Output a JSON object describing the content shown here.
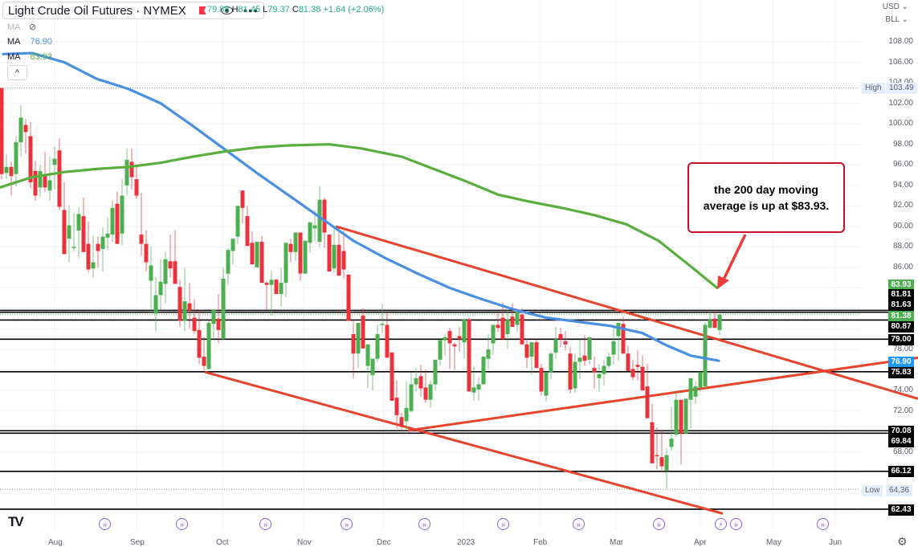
{
  "header": {
    "title": "Light Crude Oil Futures · NYMEX",
    "ohlc": {
      "o_label": "O",
      "o": "79.88",
      "h_label": "H",
      "h": "81.45",
      "l_label": "L",
      "l": "79.37",
      "c_label": "C",
      "c": "81.38",
      "change": "+1.64 (+2.06%)"
    },
    "icons": [
      "flag-icon",
      "eye-icon",
      "more-icon"
    ]
  },
  "indicators": [
    {
      "label": "MA",
      "value": "",
      "hidden": true,
      "icon": "eye-off-icon"
    },
    {
      "label": "MA",
      "value": "76.90",
      "color": "#4a90e2"
    },
    {
      "label": "MA",
      "value": "83.93",
      "color": "#4caf50"
    }
  ],
  "collapse_label": "^",
  "price_axis": {
    "currency": "USD ⌄",
    "unit": "BLL ⌄",
    "ticks": [
      "108.00",
      "106.00",
      "104.00",
      "102.00",
      "100.00",
      "98.00",
      "96.00",
      "94.00",
      "92.00",
      "90.00",
      "88.00",
      "86.00",
      "78.00",
      "74.00",
      "72.00",
      "68.00"
    ],
    "high_label": "High",
    "high": "103.49",
    "low_label": "Low",
    "low": "64.36",
    "tags": [
      {
        "value": "83.93",
        "color": "#4caf50"
      },
      {
        "value": "81.81",
        "color": "#000000"
      },
      {
        "value": "81.63",
        "color": "#000000"
      },
      {
        "value": "81.38",
        "color": "#4caf50"
      },
      {
        "value": "80.87",
        "color": "#000000"
      },
      {
        "value": "79.00",
        "color": "#000000"
      },
      {
        "value": "76.90",
        "color": "#2196f3"
      },
      {
        "value": "75.83",
        "color": "#000000"
      },
      {
        "value": "70.08",
        "color": "#000000"
      },
      {
        "value": "69.84",
        "color": "#000000"
      },
      {
        "value": "66.12",
        "color": "#000000"
      },
      {
        "value": "62.43",
        "color": "#000000"
      }
    ]
  },
  "time_axis": {
    "labels": [
      "Aug",
      "Sep",
      "Oct",
      "Nov",
      "Dec",
      "2023",
      "Feb",
      "Mar",
      "Apr",
      "May",
      "Jun"
    ]
  },
  "annotation": {
    "line1": "the 200 day moving",
    "line2": "average is up at $83.93."
  },
  "colors": {
    "up": "#4caf50",
    "down": "#e8323c",
    "ma100": "#4a90e2",
    "ma200": "#5aae3e",
    "trend": "#e8432d",
    "level": "#000000"
  },
  "chart_data": {
    "type": "candlestick",
    "title": "Light Crude Oil Futures · NYMEX (Daily)",
    "xlabel": "",
    "ylabel": "USD / BLL",
    "ylim": [
      61.5,
      109.5
    ],
    "x_ticks": [
      "Aug",
      "Sep",
      "Oct",
      "Nov",
      "Dec",
      "2023",
      "Feb",
      "Mar",
      "Apr",
      "May",
      "Jun"
    ],
    "last_bar": {
      "open": 79.88,
      "high": 81.45,
      "low": 79.37,
      "close": 81.38,
      "change": 1.64,
      "change_pct": 2.06
    },
    "high": 103.49,
    "low": 64.36,
    "horizontal_levels": [
      81.81,
      81.63,
      80.87,
      79.0,
      75.83,
      70.08,
      69.84,
      66.12,
      62.43
    ],
    "moving_averages": [
      {
        "name": "MA 100",
        "value": 76.9,
        "color": "#4a90e2",
        "points": [
          [
            4,
            106.8
          ],
          [
            40,
            106.9
          ],
          [
            80,
            106.0
          ],
          [
            120,
            104.4
          ],
          [
            160,
            103.4
          ],
          [
            200,
            102.0
          ],
          [
            240,
            99.8
          ],
          [
            280,
            97.5
          ],
          [
            320,
            95.2
          ],
          [
            360,
            93.0
          ],
          [
            400,
            90.8
          ],
          [
            440,
            88.6
          ],
          [
            480,
            86.9
          ],
          [
            520,
            85.4
          ],
          [
            560,
            84.0
          ],
          [
            600,
            82.9
          ],
          [
            640,
            81.9
          ],
          [
            680,
            81.1
          ],
          [
            720,
            80.7
          ],
          [
            760,
            80.3
          ],
          [
            800,
            79.6
          ],
          [
            830,
            78.4
          ],
          [
            860,
            77.4
          ],
          [
            895,
            76.9
          ]
        ]
      },
      {
        "name": "MA 200",
        "value": 83.93,
        "color": "#5aae3e",
        "points": [
          [
            0,
            93.8
          ],
          [
            40,
            94.8
          ],
          [
            80,
            95.3
          ],
          [
            120,
            95.6
          ],
          [
            160,
            95.8
          ],
          [
            200,
            96.2
          ],
          [
            240,
            96.8
          ],
          [
            280,
            97.3
          ],
          [
            320,
            97.7
          ],
          [
            360,
            97.9
          ],
          [
            410,
            98.0
          ],
          [
            450,
            97.6
          ],
          [
            500,
            96.8
          ],
          [
            540,
            95.6
          ],
          [
            580,
            94.4
          ],
          [
            620,
            93.1
          ],
          [
            660,
            92.4
          ],
          [
            700,
            91.8
          ],
          [
            740,
            91.1
          ],
          [
            780,
            90.2
          ],
          [
            820,
            88.6
          ],
          [
            860,
            86.1
          ],
          [
            893,
            84.0
          ]
        ]
      }
    ],
    "trendlines": [
      {
        "from": [
          418,
          90.0
        ],
        "to": [
          1143,
          73.2
        ]
      },
      {
        "from": [
          255,
          75.8
        ],
        "to": [
          900,
          62.0
        ]
      },
      {
        "from": [
          508,
          70.1
        ],
        "to": [
          1143,
          77.2
        ]
      }
    ],
    "candles": [
      [
        2,
        103.5,
        103.5,
        94.6,
        95.1
      ],
      [
        8,
        95.2,
        97.0,
        94.6,
        95.8
      ],
      [
        14,
        95.8,
        96.3,
        93.0,
        94.9
      ],
      [
        20,
        95.1,
        98.8,
        93.9,
        98.2
      ],
      [
        26,
        98.2,
        101.8,
        96.8,
        100.6
      ],
      [
        32,
        99.9,
        100.5,
        97.1,
        99.2
      ],
      [
        38,
        98.8,
        100.2,
        93.7,
        94.3
      ],
      [
        44,
        95.4,
        96.4,
        92.5,
        93.0
      ],
      [
        50,
        93.8,
        96.0,
        92.9,
        95.4
      ],
      [
        56,
        95.1,
        97.3,
        93.4,
        93.8
      ],
      [
        62,
        93.5,
        96.8,
        92.5,
        94.5
      ],
      [
        68,
        96.0,
        97.8,
        93.6,
        96.6
      ],
      [
        74,
        97.4,
        98.6,
        91.6,
        91.9
      ],
      [
        80,
        91.6,
        94.3,
        89.0,
        87.3
      ],
      [
        86,
        88.8,
        92.0,
        86.5,
        90.1
      ],
      [
        92,
        87.9,
        91.3,
        87.6,
        88.0
      ],
      [
        98,
        89.6,
        91.9,
        86.9,
        91.2
      ],
      [
        104,
        91.0,
        92.8,
        87.9,
        87.5
      ],
      [
        110,
        88.3,
        90.5,
        85.5,
        85.8
      ],
      [
        116,
        85.9,
        89.1,
        85.0,
        86.5
      ],
      [
        122,
        88.3,
        89.0,
        86.0,
        87.6
      ],
      [
        128,
        87.8,
        89.9,
        85.6,
        89.0
      ],
      [
        134,
        88.9,
        90.9,
        87.7,
        89.3
      ],
      [
        140,
        89.2,
        92.5,
        88.5,
        91.8
      ],
      [
        146,
        92.2,
        93.4,
        88.6,
        88.3
      ],
      [
        152,
        89.3,
        94.6,
        88.2,
        93.0
      ],
      [
        158,
        94.0,
        97.6,
        93.0,
        96.5
      ],
      [
        164,
        96.3,
        97.6,
        93.6,
        94.8
      ],
      [
        170,
        94.6,
        95.8,
        92.7,
        93.0
      ],
      [
        176,
        89.2,
        93.3,
        87.1,
        88.3
      ],
      [
        182,
        88.3,
        89.6,
        85.6,
        86.5
      ],
      [
        188,
        84.7,
        88.1,
        82.0,
        86.2
      ],
      [
        194,
        81.5,
        85.0,
        79.8,
        83.3
      ],
      [
        200,
        83.3,
        86.8,
        81.9,
        84.6
      ],
      [
        206,
        84.4,
        87.5,
        82.5,
        86.8
      ],
      [
        212,
        86.6,
        89.2,
        85.0,
        85.9
      ],
      [
        218,
        86.6,
        89.6,
        84.9,
        84.4
      ],
      [
        224,
        84.1,
        84.8,
        80.2,
        80.8
      ],
      [
        230,
        80.8,
        86.0,
        79.8,
        82.7
      ],
      [
        236,
        82.5,
        84.5,
        80.0,
        81.8
      ],
      [
        242,
        81.1,
        82.9,
        79.5,
        79.8
      ],
      [
        248,
        79.9,
        81.9,
        76.6,
        77.2
      ],
      [
        254,
        77.3,
        79.2,
        76.0,
        76.4
      ],
      [
        260,
        76.1,
        80.8,
        76.0,
        80.6
      ],
      [
        266,
        80.5,
        81.5,
        79.0,
        81.9
      ],
      [
        272,
        81.0,
        83.4,
        78.6,
        79.9
      ],
      [
        278,
        79.0,
        86.0,
        79.0,
        84.9
      ],
      [
        284,
        85.4,
        87.9,
        84.3,
        87.7
      ],
      [
        290,
        87.6,
        88.0,
        86.3,
        88.8
      ],
      [
        296,
        89.0,
        91.6,
        88.3,
        92.0
      ],
      [
        302,
        93.5,
        93.5,
        90.3,
        91.8
      ],
      [
        308,
        91.0,
        92.0,
        88.8,
        88.1
      ],
      [
        314,
        88.4,
        89.5,
        87.5,
        86.3
      ],
      [
        320,
        86.0,
        88.4,
        86.0,
        88.5
      ],
      [
        326,
        88.5,
        89.1,
        84.5,
        84.5
      ],
      [
        332,
        84.5,
        84.7,
        81.9,
        84.3
      ],
      [
        338,
        84.3,
        85.7,
        81.3,
        84.8
      ],
      [
        344,
        84.8,
        84.9,
        83.8,
        83.4
      ],
      [
        350,
        83.4,
        86.0,
        82.2,
        84.5
      ],
      [
        356,
        84.5,
        88.0,
        83.1,
        88.4
      ],
      [
        362,
        88.3,
        88.8,
        86.5,
        87.5
      ],
      [
        368,
        87.5,
        89.0,
        86.6,
        89.4
      ],
      [
        374,
        89.4,
        88.6,
        84.7,
        85.4
      ],
      [
        380,
        85.4,
        87.4,
        85.5,
        88.6
      ],
      [
        386,
        88.4,
        90.3,
        87.4,
        90.4
      ],
      [
        392,
        89.8,
        91.6,
        88.6,
        90.1
      ],
      [
        398,
        88.5,
        93.9,
        88.0,
        92.6
      ],
      [
        404,
        92.6,
        92.8,
        87.9,
        89.4
      ],
      [
        410,
        89.2,
        88.9,
        86.0,
        85.6
      ],
      [
        416,
        85.9,
        89.9,
        85.5,
        88.2
      ],
      [
        422,
        88.2,
        89.9,
        86.4,
        85.2
      ],
      [
        428,
        87.6,
        89.6,
        84.9,
        85.8
      ],
      [
        434,
        85.3,
        84.6,
        81.1,
        80.8
      ],
      [
        440,
        79.5,
        80.8,
        75.2,
        77.6
      ],
      [
        446,
        77.6,
        80.4,
        76.2,
        80.6
      ],
      [
        452,
        81.3,
        82.0,
        78.1,
        78.1
      ],
      [
        458,
        76.4,
        78.0,
        74.2,
        78.5
      ],
      [
        464,
        75.5,
        77.1,
        74.0,
        77.1
      ],
      [
        470,
        77.1,
        80.4,
        76.8,
        79.5
      ],
      [
        476,
        80.4,
        82.4,
        79.6,
        80.5
      ],
      [
        482,
        80.4,
        81.6,
        79.0,
        77.2
      ],
      [
        488,
        77.7,
        77.5,
        73.0,
        73.0
      ],
      [
        494,
        73.3,
        75.0,
        70.3,
        71.6
      ],
      [
        500,
        71.4,
        71.8,
        70.2,
        70.6
      ],
      [
        506,
        71.0,
        74.9,
        70.2,
        72.3
      ],
      [
        512,
        72.0,
        75.7,
        71.9,
        74.6
      ],
      [
        518,
        74.6,
        76.2,
        73.9,
        75.2
      ],
      [
        524,
        75.4,
        76.5,
        73.4,
        74.2
      ],
      [
        530,
        74.3,
        76.0,
        72.8,
        73.1
      ],
      [
        536,
        73.1,
        75.0,
        72.3,
        74.6
      ],
      [
        542,
        74.6,
        76.3,
        74.0,
        77.0
      ],
      [
        548,
        77.0,
        79.0,
        76.4,
        78.9
      ],
      [
        554,
        78.9,
        79.5,
        77.4,
        79.2
      ],
      [
        560,
        79.8,
        80.1,
        76.1,
        78.6
      ],
      [
        566,
        78.5,
        78.7,
        76.0,
        78.3
      ],
      [
        572,
        79.3,
        80.2,
        77.8,
        79.0
      ],
      [
        578,
        78.7,
        81.0,
        77.1,
        80.9
      ],
      [
        584,
        80.9,
        81.1,
        74.5,
        73.9
      ],
      [
        590,
        73.8,
        76.4,
        73.0,
        74.3
      ],
      [
        596,
        74.1,
        75.3,
        73.0,
        74.6
      ],
      [
        602,
        74.6,
        76.8,
        75.4,
        77.3
      ],
      [
        608,
        77.1,
        79.5,
        76.1,
        78.0
      ],
      [
        614,
        78.6,
        80.4,
        77.5,
        80.4
      ],
      [
        620,
        80.4,
        81.6,
        79.7,
        80.1
      ],
      [
        626,
        81.1,
        82.6,
        79.6,
        79.0
      ],
      [
        632,
        79.5,
        81.9,
        78.1,
        80.9
      ],
      [
        638,
        81.2,
        82.5,
        80.4,
        80.2
      ],
      [
        644,
        80.4,
        81.4,
        79.7,
        81.7
      ],
      [
        650,
        81.4,
        82.0,
        79.5,
        78.5
      ],
      [
        656,
        78.5,
        79.1,
        76.2,
        77.2
      ],
      [
        662,
        77.3,
        77.8,
        75.5,
        78.7
      ],
      [
        668,
        78.7,
        79.0,
        77.1,
        76.2
      ],
      [
        674,
        76.2,
        76.6,
        73.5,
        73.9
      ],
      [
        680,
        73.5,
        74.8,
        72.9,
        75.8
      ],
      [
        686,
        75.8,
        77.8,
        75.1,
        77.6
      ],
      [
        692,
        77.7,
        80.2,
        77.1,
        79.0
      ],
      [
        698,
        79.5,
        80.1,
        78.2,
        79.0
      ],
      [
        704,
        78.8,
        79.8,
        77.9,
        78.5
      ],
      [
        710,
        77.6,
        78.2,
        73.7,
        74.1
      ],
      [
        716,
        74.2,
        77.6,
        73.8,
        76.8
      ],
      [
        722,
        76.8,
        79.0,
        75.1,
        77.2
      ],
      [
        728,
        77.4,
        79.4,
        76.4,
        76.9
      ],
      [
        734,
        77.0,
        78.1,
        76.6,
        79.2
      ],
      [
        740,
        76.2,
        77.3,
        74.2,
        75.8
      ],
      [
        746,
        75.2,
        76.6,
        73.9,
        75.6
      ],
      [
        752,
        75.6,
        77.0,
        74.5,
        76.4
      ],
      [
        758,
        76.4,
        77.7,
        76.2,
        77.3
      ],
      [
        764,
        77.5,
        80.2,
        76.5,
        78.8
      ],
      [
        770,
        79.3,
        80.3,
        76.9,
        80.6
      ],
      [
        776,
        80.5,
        81.2,
        77.6,
        77.6
      ],
      [
        782,
        77.6,
        78.4,
        76.9,
        75.9
      ],
      [
        788,
        76.1,
        77.0,
        75.0,
        75.3
      ],
      [
        794,
        76.5,
        77.9,
        75.0,
        76.3
      ],
      [
        800,
        76.3,
        77.4,
        74.8,
        74.0
      ],
      [
        806,
        74.4,
        76.6,
        72.2,
        71.3
      ],
      [
        812,
        70.9,
        72.7,
        67.7,
        66.9
      ],
      [
        818,
        67.7,
        70.4,
        66.3,
        67.6
      ],
      [
        824,
        67.5,
        70.2,
        66.1,
        66.6
      ],
      [
        830,
        66.2,
        68.4,
        64.4,
        67.7
      ],
      [
        836,
        68.5,
        72.4,
        68.1,
        69.3
      ],
      [
        842,
        69.7,
        74.0,
        69.5,
        73.1
      ],
      [
        848,
        73.1,
        70.0,
        66.8,
        69.8
      ],
      [
        854,
        69.8,
        72.1,
        69.9,
        73.2
      ],
      [
        860,
        73.1,
        73.9,
        70.3,
        75.2
      ],
      [
        866,
        73.4,
        74.9,
        72.7,
        74.4
      ],
      [
        872,
        74.3,
        75.3,
        73.9,
        75.8
      ],
      [
        878,
        74.4,
        80.7,
        74.2,
        80.4
      ],
      [
        884,
        80.1,
        81.7,
        80.1,
        80.9
      ],
      [
        890,
        81.0,
        81.7,
        80.3,
        80.1
      ],
      [
        896,
        79.9,
        81.5,
        79.4,
        81.4
      ]
    ]
  }
}
